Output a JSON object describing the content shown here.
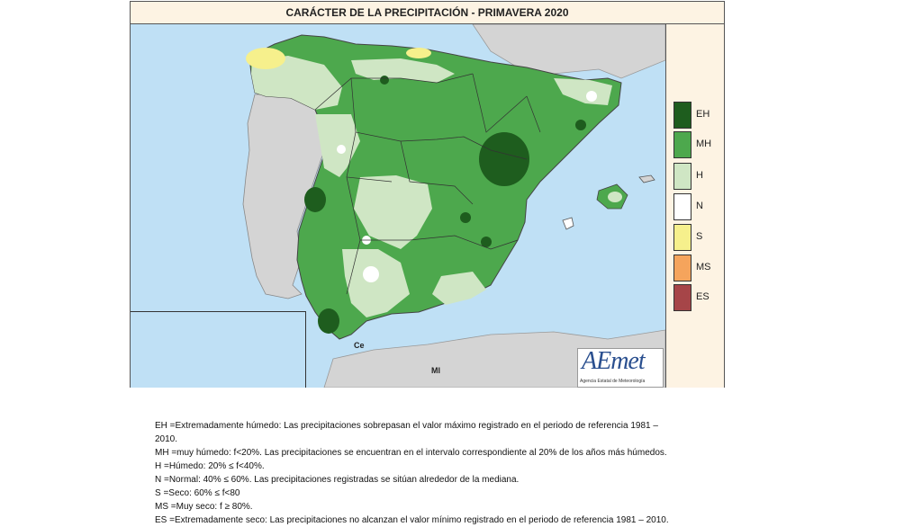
{
  "title": "CARÁCTER DE LA PRECIPITACIÓN - PRIMAVERA 2020",
  "legend": [
    {
      "code": "EH",
      "color": "#1e5d1e"
    },
    {
      "code": "MH",
      "color": "#4da84d"
    },
    {
      "code": "H",
      "color": "#cfe6c4"
    },
    {
      "code": "N",
      "color": "#ffffff"
    },
    {
      "code": "S",
      "color": "#f6f08c"
    },
    {
      "code": "MS",
      "color": "#f5a45c"
    },
    {
      "code": "ES",
      "color": "#a64548"
    }
  ],
  "map_labels": {
    "ceuta": "Ce",
    "melilla": "Ml"
  },
  "logo": {
    "text": "AEmet",
    "subtitle": "Agencia Estatal de Meteorología"
  },
  "notes": [
    "EH   =Extremadamente húmedo: Las precipitaciones sobrepasan el valor máximo registrado en el periodo de referencia 1981 –",
    "2010.",
    "MH  =muy húmedo: f<20%. Las precipitaciones se encuentran en el intervalo correspondiente al 20% de los años más  húmedos.",
    "H      =Húmedo: 20% ≤ f<40%.",
    "N      =Normal: 40% ≤ 60%. Las precipitaciones registradas se sitúan alrededor de la mediana.",
    "S      =Seco: 60%   ≤ f<80",
    "MS   =Muy seco: f ≥ 80%.",
    "ES   =Extremadamente  seco: Las precipitaciones no alcanzan el valor mínimo registrado en el periodo de referencia 1981 – 2010."
  ]
}
